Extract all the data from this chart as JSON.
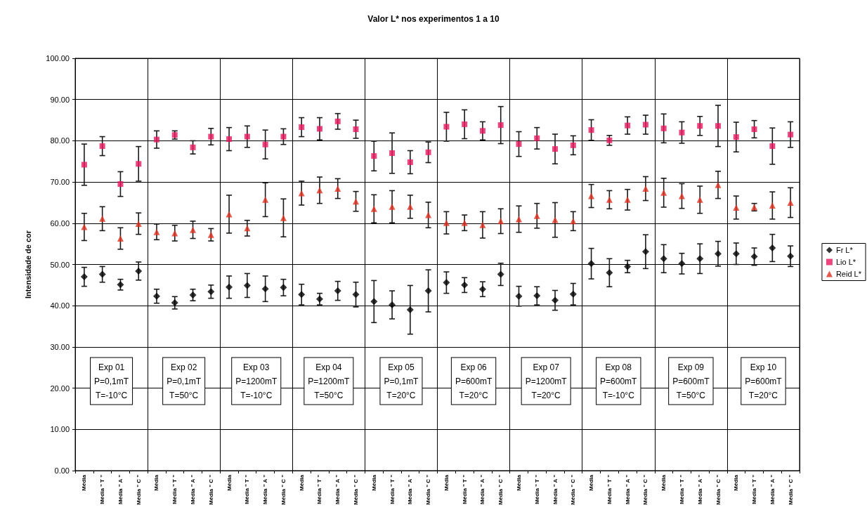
{
  "chart_data": {
    "type": "scatter",
    "title": "Valor L* nos experimentos 1 a 10",
    "ylabel": "Intensidade de cor",
    "categories": [
      "Média",
      "Média \" T \"",
      "Média \" A \"",
      "Média \" C \"",
      "Média",
      "Média \" T \"",
      "Média \" A \"",
      "Média \" C \"",
      "Média",
      "Média \" T \"",
      "Média \" A \"",
      "Média \" C \"",
      "Média",
      "Média \" T \"",
      "Média \" A \"",
      "Média \" C \"",
      "Média",
      "Média \" T \"",
      "Média \" A \"",
      "Média \" C \"",
      "Média",
      "Média \" T \"",
      "Média \" A \"",
      "Média \" C \"",
      "Média",
      "Média \" T \"",
      "Média \" A \"",
      "Média \" C \"",
      "Média",
      "Média \" T \"",
      "Média \" A \"",
      "Média \" C \"",
      "Média",
      "Média \" T \"",
      "Média \" A \"",
      "Média \" C \"",
      "Média",
      "Média \" T \"",
      "Média \" A \"",
      "Média \" C \""
    ],
    "series": [
      {
        "name": "Fr L*",
        "color": "#000000",
        "marker": "diamond",
        "values": [
          47.0,
          47.6,
          45.1,
          48.4,
          42.3,
          40.7,
          42.6,
          43.4,
          44.5,
          44.9,
          44.1,
          44.4,
          42.7,
          41.6,
          43.6,
          42.7,
          41.0,
          40.2,
          39.0,
          43.6,
          45.6,
          45.0,
          44.0,
          47.6,
          42.3,
          42.4,
          41.3,
          42.8,
          50.2,
          48.0,
          49.5,
          53.1,
          51.4,
          50.2,
          51.4,
          52.6,
          52.6,
          51.9,
          54.0,
          52.0
        ],
        "errors": [
          2.3,
          1.9,
          1.3,
          2.2,
          1.7,
          1.5,
          1.4,
          1.6,
          2.7,
          2.9,
          3.1,
          2.0,
          2.5,
          1.4,
          2.3,
          3.0,
          5.1,
          3.4,
          5.9,
          5.1,
          2.6,
          1.8,
          1.8,
          2.7,
          2.4,
          2.2,
          2.4,
          2.6,
          3.7,
          3.4,
          1.5,
          4.1,
          3.4,
          2.5,
          3.6,
          3.0,
          2.6,
          2.1,
          3.3,
          2.5
        ]
      },
      {
        "name": "Lio L*",
        "color": "#e8175d",
        "marker": "square",
        "values": [
          74.2,
          78.7,
          69.5,
          74.4,
          80.3,
          81.4,
          78.4,
          81.0,
          80.4,
          81.0,
          79.1,
          81.0,
          83.3,
          82.9,
          84.7,
          82.8,
          76.3,
          77.0,
          74.8,
          77.2,
          83.4,
          84.0,
          82.4,
          83.8,
          79.2,
          80.6,
          78.0,
          78.9,
          82.6,
          80.1,
          83.7,
          83.9,
          83.0,
          82.0,
          83.6,
          83.6,
          80.9,
          82.8,
          78.7,
          81.5
        ],
        "errors": [
          5.0,
          2.3,
          3.0,
          4.2,
          2.1,
          1.0,
          1.6,
          2.0,
          2.8,
          2.6,
          3.5,
          1.9,
          2.3,
          2.7,
          1.9,
          2.2,
          3.6,
          4.9,
          2.8,
          2.5,
          3.5,
          3.5,
          2.2,
          4.5,
          3.0,
          2.6,
          3.6,
          2.3,
          2.5,
          1.2,
          2.1,
          2.3,
          3.5,
          2.6,
          2.3,
          5.0,
          3.6,
          2.1,
          4.4,
          3.1
        ]
      },
      {
        "name": "Reid L*",
        "color": "#e0301e",
        "marker": "triangle",
        "values": [
          59.1,
          61.1,
          56.3,
          59.9,
          57.9,
          57.6,
          58.4,
          57.2,
          62.2,
          58.8,
          65.7,
          61.3,
          67.3,
          68.0,
          68.4,
          65.3,
          63.5,
          64.0,
          64.0,
          62.0,
          60.1,
          60.1,
          59.6,
          60.5,
          61.0,
          61.8,
          60.8,
          60.5,
          66.6,
          65.7,
          65.7,
          68.4,
          67.4,
          66.6,
          65.7,
          69.3,
          63.8,
          63.9,
          64.3,
          65.0
        ],
        "errors": [
          3.3,
          2.9,
          2.6,
          2.6,
          1.9,
          1.9,
          2.1,
          1.5,
          4.6,
          1.9,
          4.1,
          4.6,
          2.9,
          3.2,
          2.4,
          2.4,
          3.4,
          3.9,
          2.8,
          3.1,
          2.7,
          1.9,
          3.2,
          3.0,
          3.2,
          3.0,
          4.2,
          2.3,
          2.8,
          2.2,
          2.5,
          2.9,
          3.5,
          3.0,
          3.3,
          3.3,
          2.8,
          0.9,
          3.3,
          3.6
        ]
      }
    ],
    "ylim": [
      0,
      100
    ],
    "yticks": [
      {
        "value": 0,
        "label": "0.00"
      },
      {
        "value": 10,
        "label": "10.00"
      },
      {
        "value": 20,
        "label": "20.00"
      },
      {
        "value": 30,
        "label": "30.00"
      },
      {
        "value": 40,
        "label": "40.00"
      },
      {
        "value": 50,
        "label": "50.00"
      },
      {
        "value": 60,
        "label": "60.00"
      },
      {
        "value": 70,
        "label": "70.00"
      },
      {
        "value": 80,
        "label": "80.00"
      },
      {
        "value": 90,
        "label": "90.00"
      },
      {
        "value": 100,
        "label": "100.00"
      }
    ],
    "grid": true,
    "legend": "right",
    "annotations": [
      "Exp 01\nP=0,1mT\nT=-10°C",
      "Exp 02\nP=0,1mT\nT=50°C",
      "Exp 03\nP=1200mT\nT=-10°C",
      "Exp 04\nP=1200mT\nT=50°C",
      "Exp 05\nP=0,1mT\nT=20°C",
      "Exp 06\nP=600mT\nT=20°C",
      "Exp 07\nP=1200mT\nT=20°C",
      "Exp 08\nP=600mT\nT=-10°C",
      "Exp 09\nP=600mT\nT=50°C",
      "Exp 10\nP=600mT\nT=20°C"
    ]
  }
}
